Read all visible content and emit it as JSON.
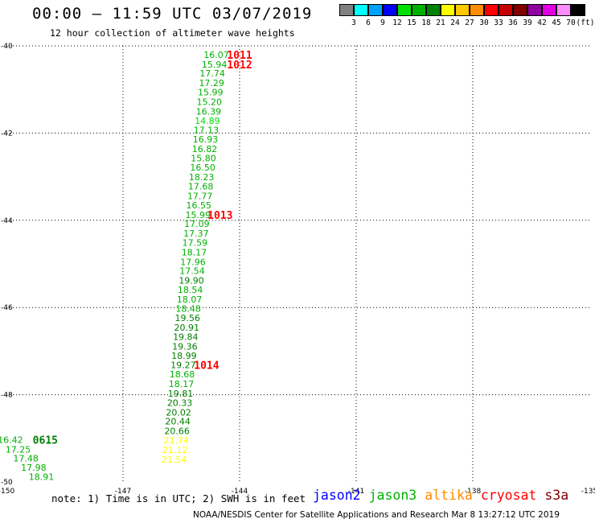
{
  "header": {
    "title": "00:00 — 11:59 UTC 03/07/2019",
    "subtitle": "12 hour collection of altimeter wave heights"
  },
  "scale": {
    "labels": [
      "3",
      "6",
      "9",
      "12",
      "15",
      "18",
      "21",
      "24",
      "27",
      "30",
      "33",
      "36",
      "39",
      "42",
      "45",
      "70",
      "(ft)"
    ],
    "colors": [
      "#808080",
      "#00ffff",
      "#00a0ff",
      "#0000ff",
      "#00e000",
      "#00b000",
      "#008000",
      "#ffff00",
      "#ffc800",
      "#ff8c00",
      "#ff0000",
      "#c80000",
      "#800000",
      "#9000a0",
      "#e000e0",
      "#ff8cff",
      "#000000"
    ]
  },
  "chart_data": {
    "type": "scatter",
    "title": "00:00 — 11:59 UTC 03/07/2019",
    "subtitle": "12 hour collection of altimeter wave heights",
    "xlim": [
      -150,
      -135
    ],
    "ylim": [
      -50,
      -40
    ],
    "x_ticks": [
      "-150",
      "-147",
      "-144",
      "-141",
      "-138",
      "-135"
    ],
    "y_ticks": [
      "-40",
      "-42",
      "-44",
      "-46",
      "-48",
      "-50"
    ],
    "grid": true,
    "units": "ft",
    "track": [
      {
        "lon": -144.6,
        "lat": -40.2,
        "swh": "16.07",
        "color": "#00b000"
      },
      {
        "lon": -144.65,
        "lat": -40.42,
        "swh": "15.94",
        "color": "#00b000"
      },
      {
        "lon": -144.7,
        "lat": -40.63,
        "swh": "17.74",
        "color": "#00b000"
      },
      {
        "lon": -144.72,
        "lat": -40.85,
        "swh": "17.29",
        "color": "#00b000"
      },
      {
        "lon": -144.75,
        "lat": -41.06,
        "swh": "15.99",
        "color": "#00b000"
      },
      {
        "lon": -144.78,
        "lat": -41.28,
        "swh": "15.20",
        "color": "#00b000"
      },
      {
        "lon": -144.8,
        "lat": -41.5,
        "swh": "16.39",
        "color": "#00b000"
      },
      {
        "lon": -144.83,
        "lat": -41.72,
        "swh": "14.89",
        "color": "#00e000"
      },
      {
        "lon": -144.86,
        "lat": -41.93,
        "swh": "17.13",
        "color": "#00b000"
      },
      {
        "lon": -144.88,
        "lat": -42.14,
        "swh": "16.93",
        "color": "#00b000"
      },
      {
        "lon": -144.9,
        "lat": -42.36,
        "swh": "16.82",
        "color": "#00b000"
      },
      {
        "lon": -144.93,
        "lat": -42.57,
        "swh": "15.80",
        "color": "#00b000"
      },
      {
        "lon": -144.95,
        "lat": -42.79,
        "swh": "16.50",
        "color": "#00b000"
      },
      {
        "lon": -144.98,
        "lat": -43.01,
        "swh": "18.23",
        "color": "#00b000"
      },
      {
        "lon": -145.0,
        "lat": -43.22,
        "swh": "17.68",
        "color": "#00b000"
      },
      {
        "lon": -145.02,
        "lat": -43.44,
        "swh": "17.77",
        "color": "#00b000"
      },
      {
        "lon": -145.05,
        "lat": -43.65,
        "swh": "16.55",
        "color": "#00b000"
      },
      {
        "lon": -145.07,
        "lat": -43.87,
        "swh": "15.99",
        "color": "#00b000"
      },
      {
        "lon": -145.1,
        "lat": -44.08,
        "swh": "17.09",
        "color": "#00b000"
      },
      {
        "lon": -145.12,
        "lat": -44.3,
        "swh": "17.37",
        "color": "#00b000"
      },
      {
        "lon": -145.15,
        "lat": -44.51,
        "swh": "17.59",
        "color": "#00b000"
      },
      {
        "lon": -145.17,
        "lat": -44.73,
        "swh": "18.17",
        "color": "#00b000"
      },
      {
        "lon": -145.2,
        "lat": -44.95,
        "swh": "17.96",
        "color": "#00b000"
      },
      {
        "lon": -145.22,
        "lat": -45.16,
        "swh": "17.54",
        "color": "#00b000"
      },
      {
        "lon": -145.24,
        "lat": -45.38,
        "swh": "19.90",
        "color": "#008000"
      },
      {
        "lon": -145.27,
        "lat": -45.59,
        "swh": "18.54",
        "color": "#00b000"
      },
      {
        "lon": -145.29,
        "lat": -45.81,
        "swh": "18.07",
        "color": "#00b000"
      },
      {
        "lon": -145.32,
        "lat": -46.02,
        "swh": "18.48",
        "color": "#00b000"
      },
      {
        "lon": -145.34,
        "lat": -46.24,
        "swh": "19.56",
        "color": "#008000"
      },
      {
        "lon": -145.36,
        "lat": -46.46,
        "swh": "20.91",
        "color": "#008000"
      },
      {
        "lon": -145.39,
        "lat": -46.67,
        "swh": "19.84",
        "color": "#008000"
      },
      {
        "lon": -145.41,
        "lat": -46.89,
        "swh": "19.36",
        "color": "#008000"
      },
      {
        "lon": -145.43,
        "lat": -47.1,
        "swh": "18.99",
        "color": "#008000"
      },
      {
        "lon": -145.45,
        "lat": -47.32,
        "swh": "19.27",
        "color": "#008000"
      },
      {
        "lon": -145.48,
        "lat": -47.53,
        "swh": "18.68",
        "color": "#00b000"
      },
      {
        "lon": -145.5,
        "lat": -47.75,
        "swh": "18.17",
        "color": "#00b000"
      },
      {
        "lon": -145.52,
        "lat": -47.97,
        "swh": "19.81",
        "color": "#008000"
      },
      {
        "lon": -145.54,
        "lat": -48.18,
        "swh": "20.33",
        "color": "#008000"
      },
      {
        "lon": -145.57,
        "lat": -48.4,
        "swh": "20.02",
        "color": "#008000"
      },
      {
        "lon": -145.59,
        "lat": -48.61,
        "swh": "20.44",
        "color": "#008000"
      },
      {
        "lon": -145.61,
        "lat": -48.83,
        "swh": "20.66",
        "color": "#008000"
      },
      {
        "lon": -145.63,
        "lat": -49.04,
        "swh": "21.74",
        "color": "#ffff00"
      },
      {
        "lon": -145.66,
        "lat": -49.26,
        "swh": "21.12",
        "color": "#ffff00"
      },
      {
        "lon": -145.68,
        "lat": -49.48,
        "swh": "21.54",
        "color": "#ffff00"
      },
      {
        "lon": -149.9,
        "lat": -49.03,
        "swh": "16.42",
        "color": "#00b000"
      },
      {
        "lon": -149.7,
        "lat": -49.25,
        "swh": "17.25",
        "color": "#00b000"
      },
      {
        "lon": -149.5,
        "lat": -49.46,
        "swh": "17.48",
        "color": "#00b000"
      },
      {
        "lon": -149.3,
        "lat": -49.67,
        "swh": "17.98",
        "color": "#00b000"
      },
      {
        "lon": -149.1,
        "lat": -49.88,
        "swh": "18.91",
        "color": "#00b000"
      }
    ],
    "time_labels": [
      {
        "lon": -144.0,
        "lat": -40.2,
        "text": "1011",
        "color": "#ff0000"
      },
      {
        "lon": -144.0,
        "lat": -40.42,
        "text": "1012",
        "color": "#ff0000"
      },
      {
        "lon": -144.5,
        "lat": -43.87,
        "text": "1013",
        "color": "#ff0000"
      },
      {
        "lon": -144.85,
        "lat": -47.32,
        "text": "1014",
        "color": "#ff0000"
      },
      {
        "lon": -149.0,
        "lat": -49.03,
        "text": "0615",
        "color": "#008000"
      }
    ]
  },
  "note": "note: 1) Time is in UTC; 2) SWH is in feet",
  "satellites": [
    {
      "name": "jason2",
      "color": "#0000ff"
    },
    {
      "name": "jason3",
      "color": "#00b000"
    },
    {
      "name": "altika",
      "color": "#ff8c00"
    },
    {
      "name": "cryosat",
      "color": "#ff0000"
    },
    {
      "name": "s3a",
      "color": "#800000"
    }
  ],
  "footer": "NOAA/NESDIS Center for Satellite Applications and Research   Mar  8 13:27:12 UTC 2019"
}
